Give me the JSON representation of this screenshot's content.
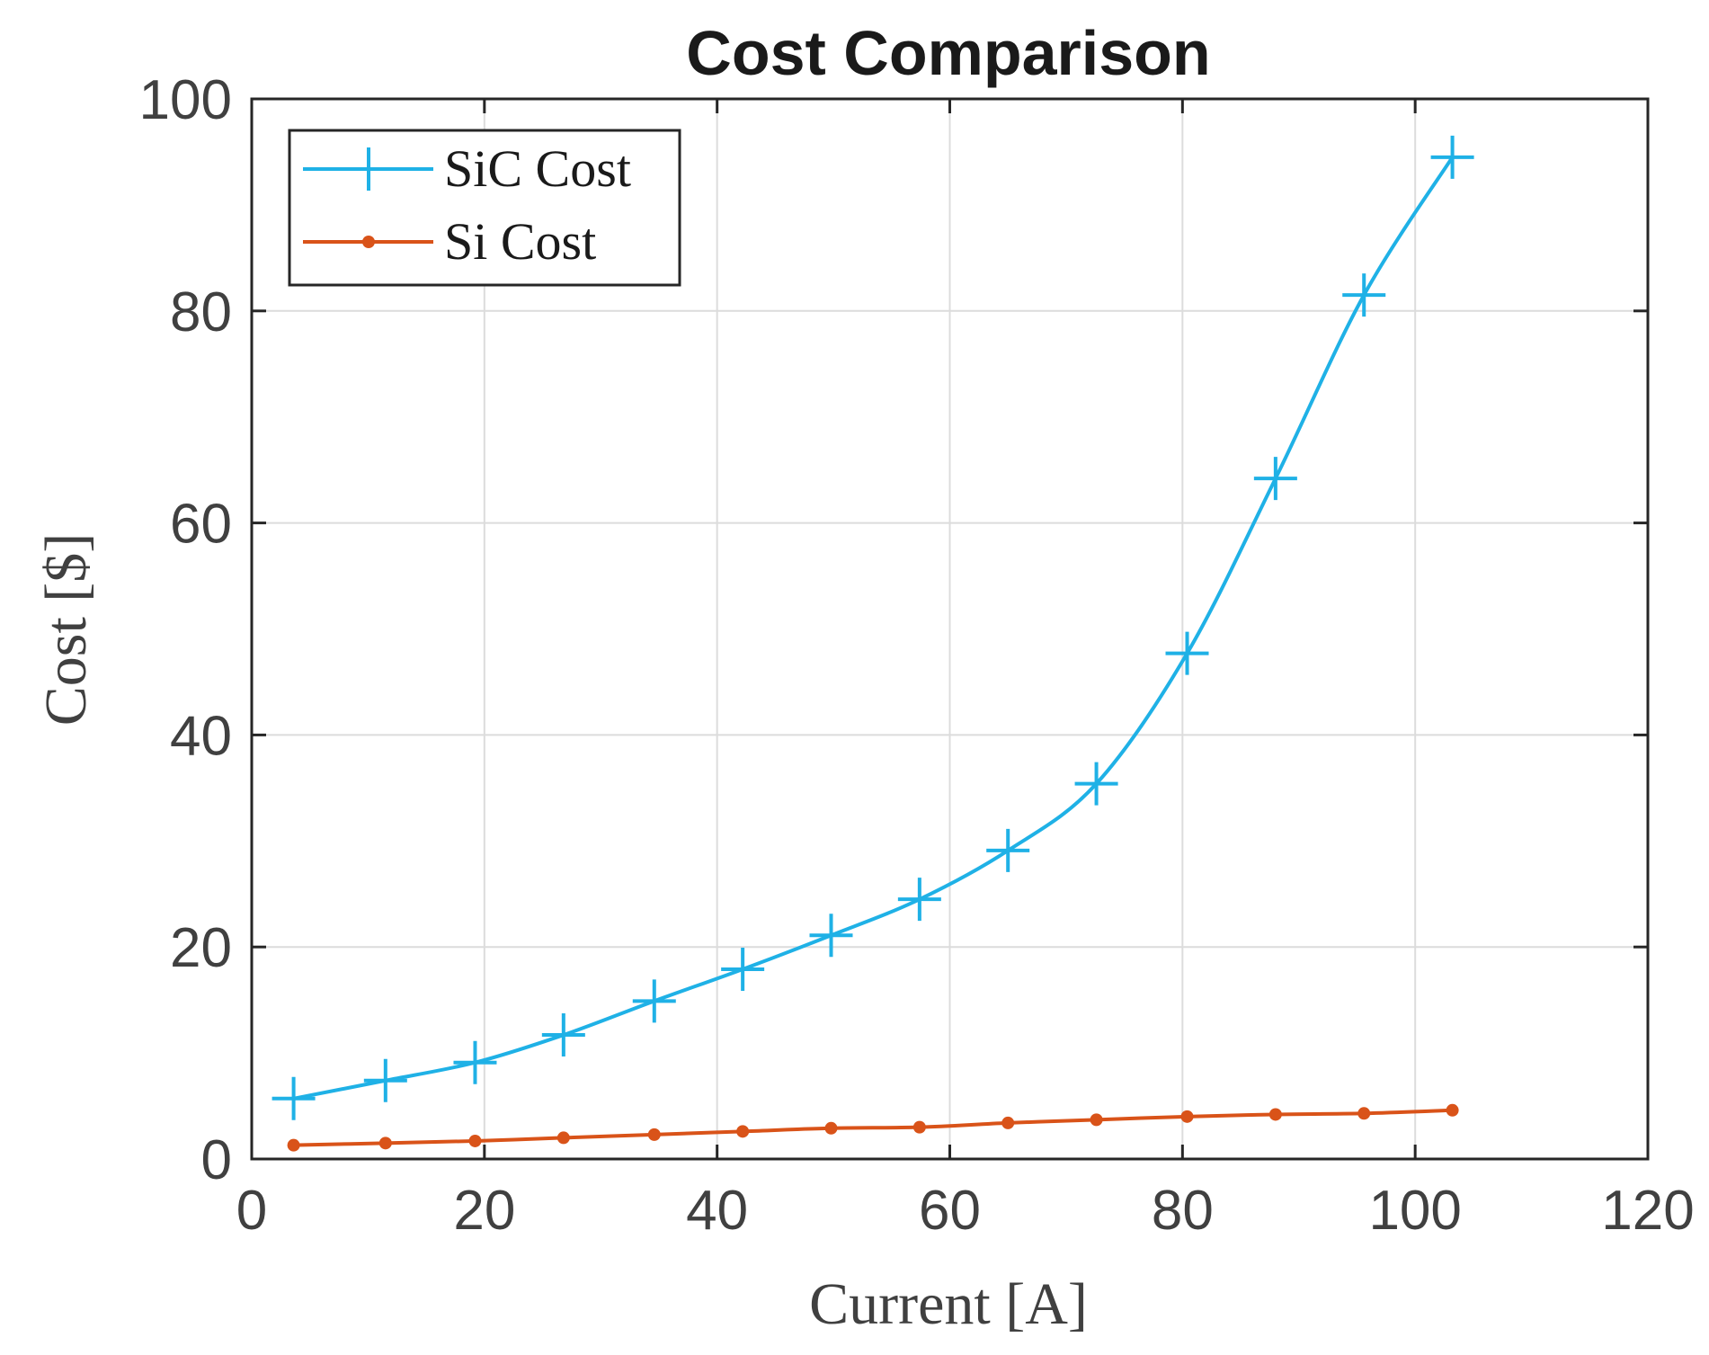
{
  "chart_data": {
    "type": "line",
    "title": "Cost Comparison",
    "xlabel": "Current [A]",
    "ylabel": "Cost [$]",
    "xlim": [
      0,
      120
    ],
    "ylim": [
      0,
      100
    ],
    "xticks": [
      0,
      20,
      40,
      60,
      80,
      100,
      120
    ],
    "yticks": [
      0,
      20,
      40,
      60,
      80,
      100
    ],
    "xtick_labels": [
      "0",
      "20",
      "40",
      "60",
      "80",
      "100",
      "120"
    ],
    "ytick_labels": [
      "0",
      "20",
      "40",
      "60",
      "80",
      "100"
    ],
    "grid": true,
    "legend_position": "top-left",
    "series": [
      {
        "name": "SiC Cost",
        "color": "#1fb1e6",
        "marker": "plus",
        "x": [
          3.6,
          11.5,
          19.2,
          26.8,
          34.6,
          42.2,
          49.8,
          57.4,
          65.0,
          72.6,
          80.4,
          88.0,
          95.6,
          103.2
        ],
        "y": [
          5.7,
          7.4,
          9.1,
          11.7,
          14.9,
          17.9,
          21.1,
          24.5,
          29.1,
          35.4,
          47.7,
          64.2,
          81.5,
          94.5
        ]
      },
      {
        "name": "Si Cost",
        "color": "#d95319",
        "marker": "dot",
        "x": [
          3.6,
          11.5,
          19.2,
          26.8,
          34.6,
          42.2,
          49.8,
          57.4,
          65.0,
          72.6,
          80.4,
          88.0,
          95.6,
          103.2
        ],
        "y": [
          1.3,
          1.5,
          1.7,
          2.0,
          2.3,
          2.6,
          2.9,
          3.0,
          3.4,
          3.7,
          4.0,
          4.2,
          4.3,
          4.6
        ]
      }
    ]
  }
}
